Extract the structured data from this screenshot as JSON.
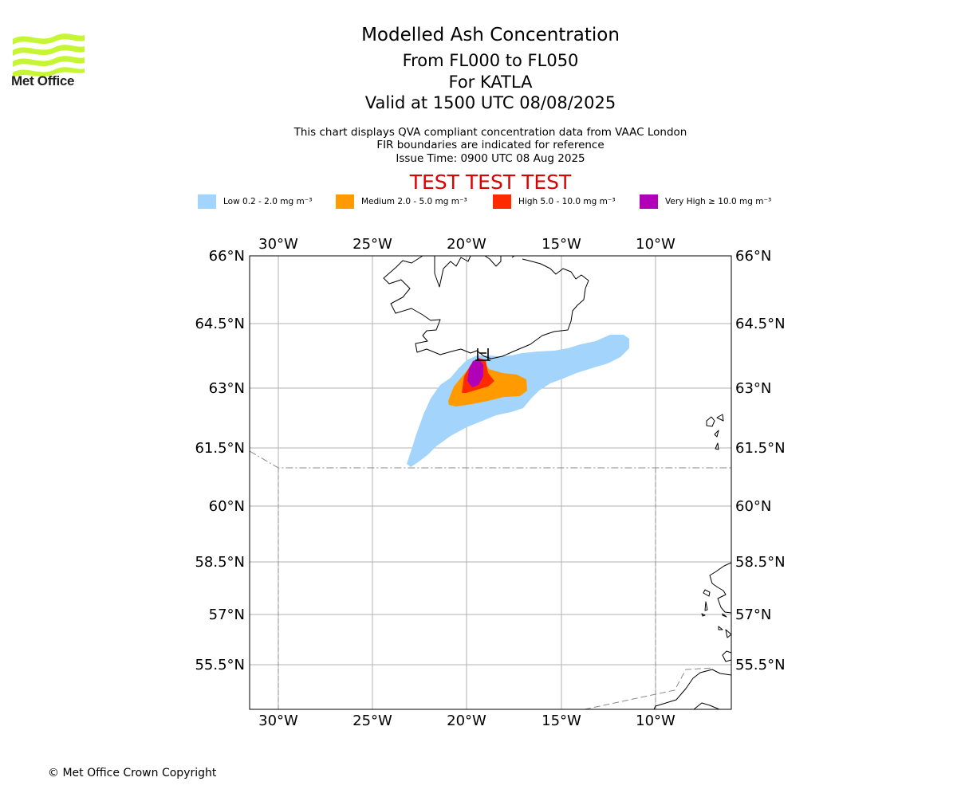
{
  "header": {
    "logo_text": "Met Office",
    "title": "Modelled Ash Concentration",
    "level_range": "From FL000 to FL050",
    "volcano": "For KATLA",
    "valid_time": "Valid at 1500 UTC 08/08/2025",
    "note_qva": "This chart displays QVA compliant concentration data from VAAC London",
    "note_fir": "FIR boundaries are indicated for reference",
    "issue_time": "Issue Time: 0900 UTC 08 Aug 2025",
    "test_banner": "TEST TEST TEST"
  },
  "legend": [
    {
      "label": "Low 0.2 - 2.0 mg m⁻³",
      "color": "#a3d4fb"
    },
    {
      "label": "Medium 2.0 - 5.0 mg m⁻³",
      "color": "#ff9a00"
    },
    {
      "label": "High 5.0 - 10.0 mg m⁻³",
      "color": "#ff2b00"
    },
    {
      "label": "Very High ≥ 10.0 mg m⁻³",
      "color": "#b000b8"
    }
  ],
  "map": {
    "lon_ticks": [
      "30°W",
      "25°W",
      "20°W",
      "15°W",
      "10°W"
    ],
    "lat_ticks": [
      "66°N",
      "64.5°N",
      "63°N",
      "61.5°N",
      "60°N",
      "58.5°N",
      "57°N",
      "55.5°N"
    ],
    "colors": {
      "grid": "#b0b0b0",
      "coast": "#000000",
      "fir": "#8a8a8a"
    }
  },
  "footer": {
    "copyright": "© Met Office Crown Copyright"
  }
}
